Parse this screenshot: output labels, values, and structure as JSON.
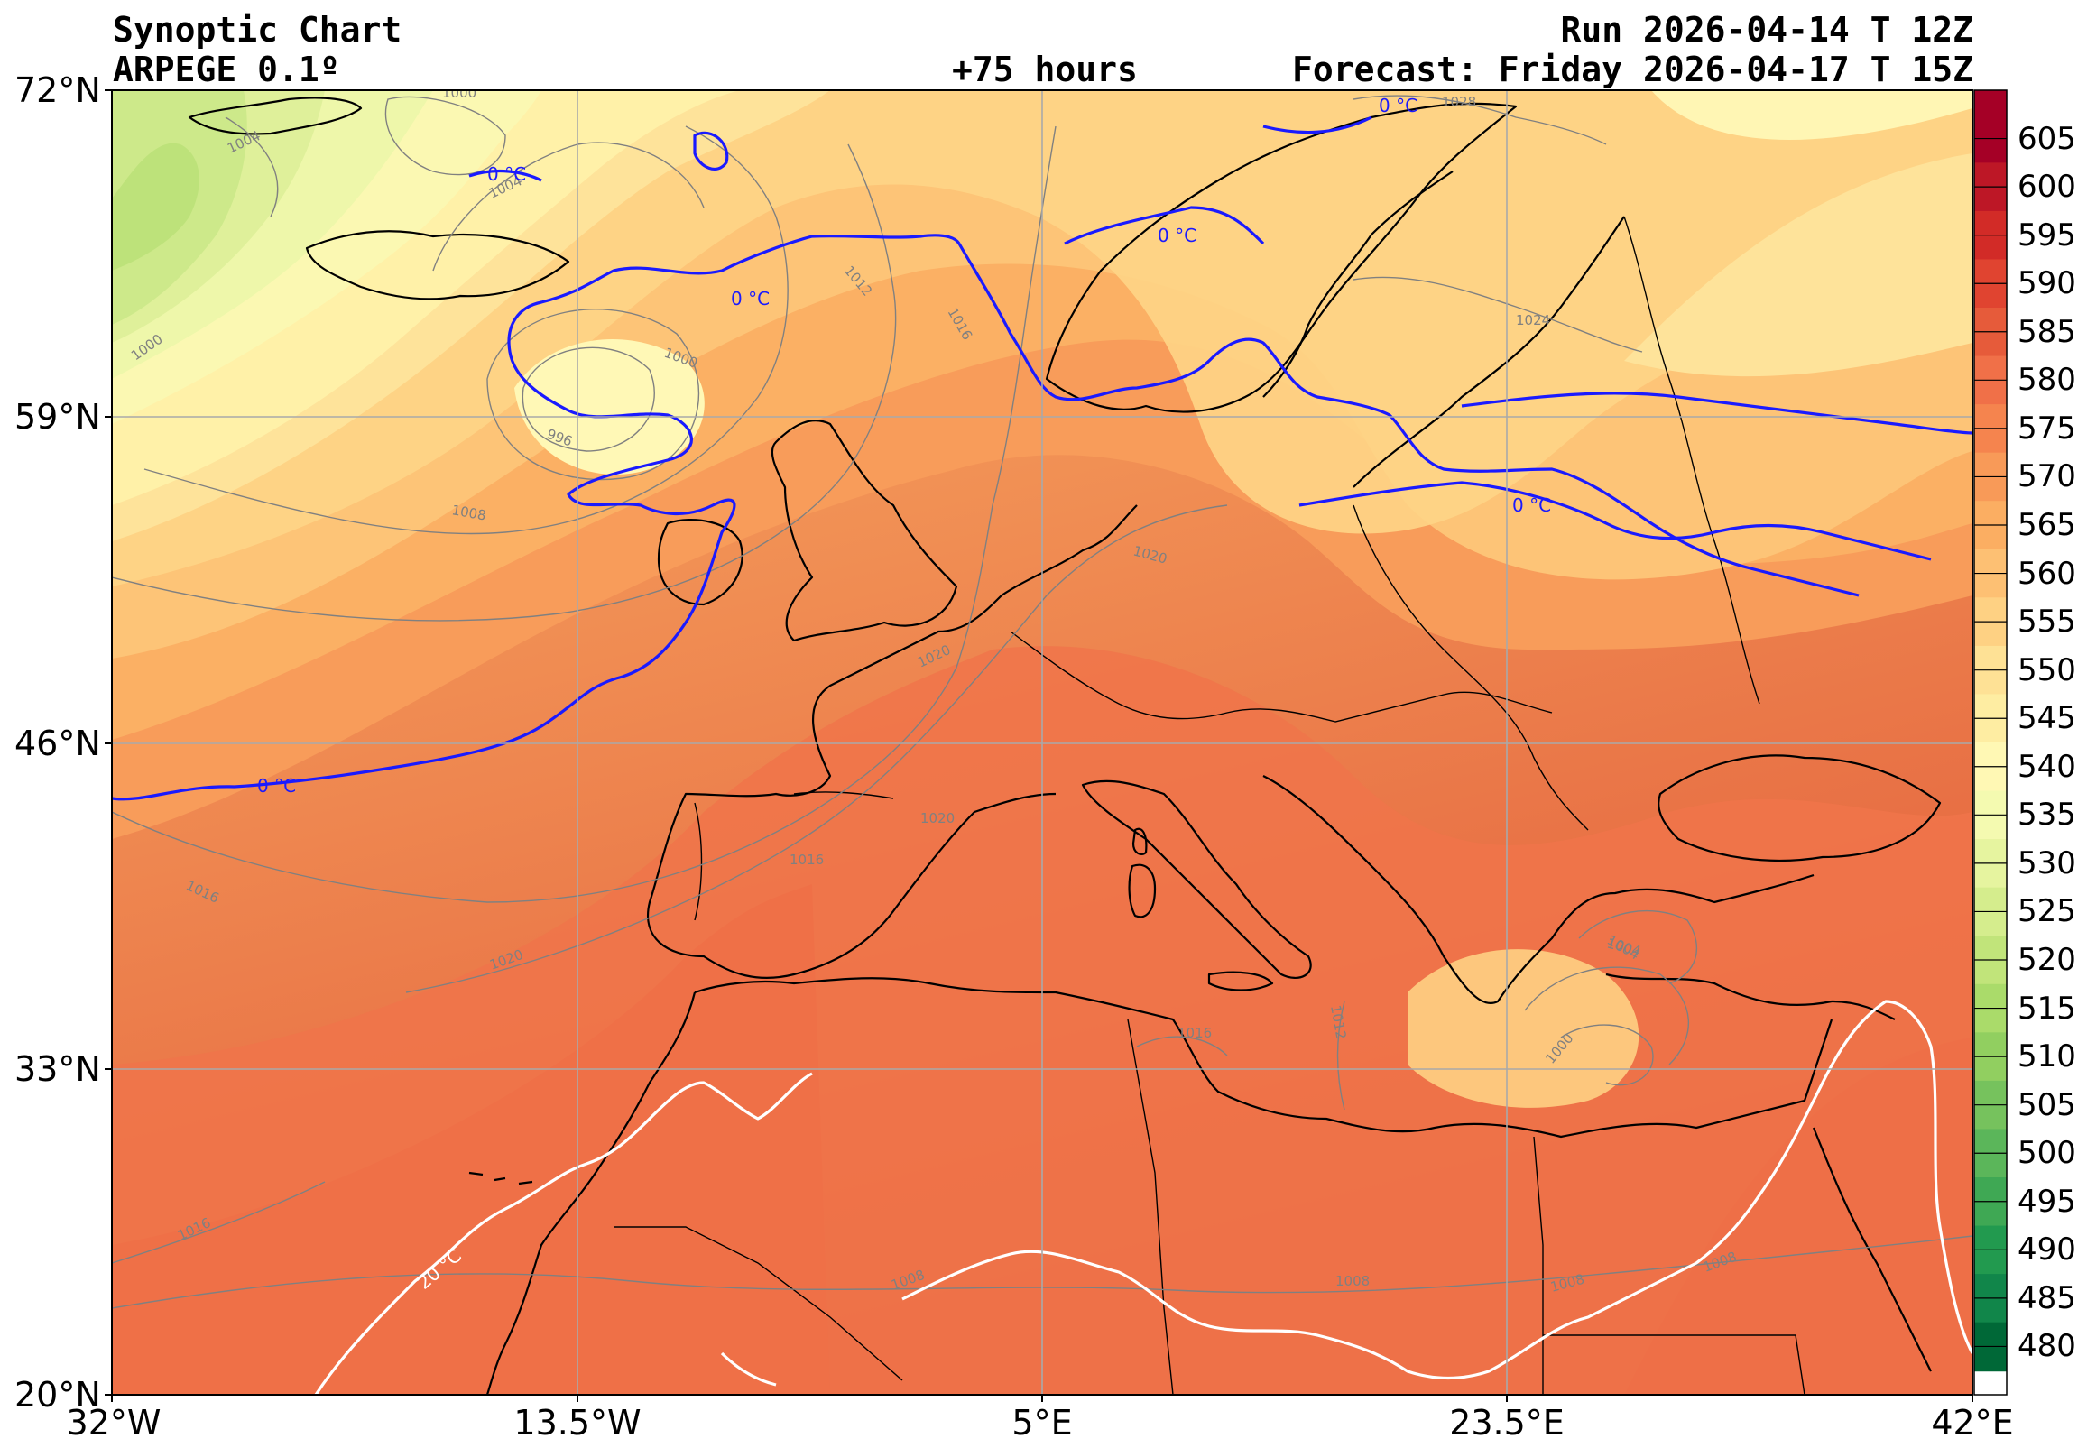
{
  "header": {
    "title_line1": "Synoptic Chart",
    "title_line2": "ARPEGE 0.1º",
    "lead_time": "+75 hours",
    "run": "Run 2026-04-14 T 12Z",
    "forecast": "Forecast: Friday 2026-04-17 T 15Z"
  },
  "axes": {
    "lat_labels": [
      "72°N",
      "59°N",
      "46°N",
      "33°N",
      "20°N"
    ],
    "lon_labels": [
      "32°W",
      "13.5°W",
      "5°E",
      "23.5°E",
      "42°E"
    ]
  },
  "colorbar": {
    "labels": [
      "605",
      "600",
      "595",
      "590",
      "585",
      "580",
      "575",
      "570",
      "565",
      "560",
      "555",
      "550",
      "545",
      "540",
      "535",
      "530",
      "525",
      "520",
      "515",
      "510",
      "505",
      "500",
      "495",
      "490",
      "485",
      "480"
    ],
    "colors": [
      "#a50026",
      "#bd1726",
      "#d22b27",
      "#e04430",
      "#e65b3a",
      "#f07048",
      "#f5844e",
      "#f89a58",
      "#fbae62",
      "#fdc073",
      "#fed183",
      "#fee195",
      "#feeda2",
      "#fff8b4",
      "#f4fab0",
      "#e6f49f",
      "#d5ed8d",
      "#c1e47a",
      "#aadb6a",
      "#91cf60",
      "#76c25d",
      "#5bb65a",
      "#3fa854",
      "#229a4f",
      "#11864a",
      "#006837"
    ]
  },
  "isotherm_labels": {
    "zero": "0 °C",
    "twenty": "20 °C"
  },
  "isobar_labels": [
    "1000",
    "1004",
    "1004",
    "1000",
    "1000",
    "996",
    "1008",
    "1012",
    "1016",
    "1020",
    "1024",
    "1028",
    "1020",
    "1016",
    "1020",
    "1016",
    "1020",
    "1016",
    "1012",
    "1004",
    "1000",
    "1016",
    "1008",
    "1008",
    "1008",
    "1004",
    "1008"
  ]
}
